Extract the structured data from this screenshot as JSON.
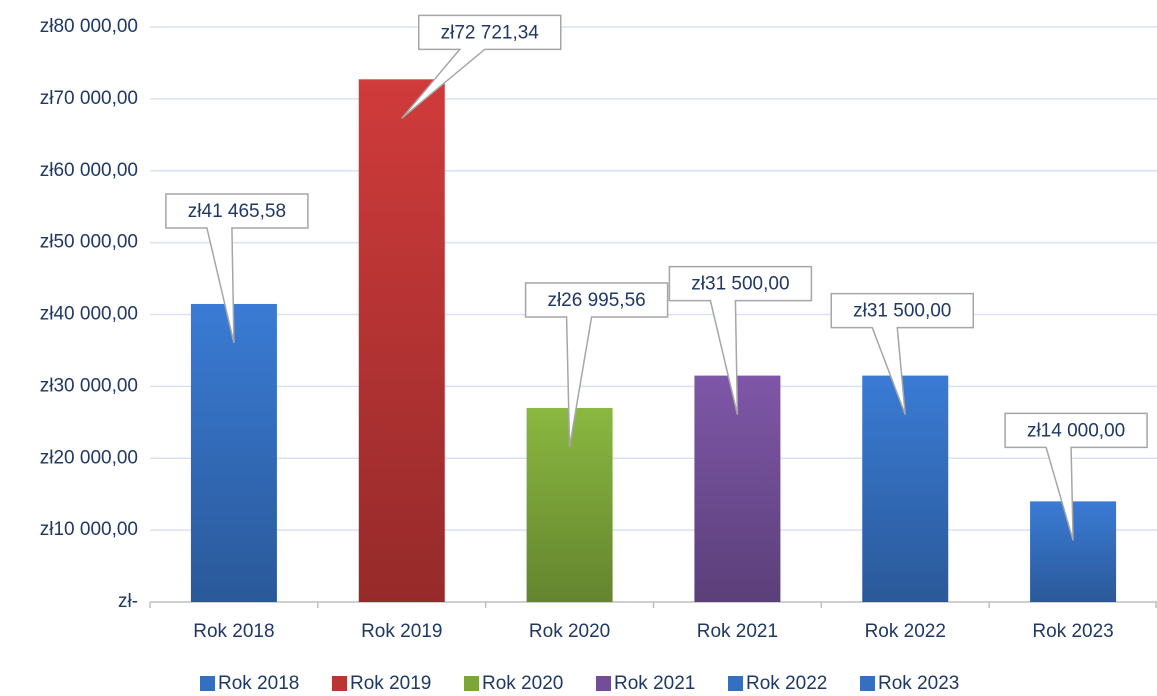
{
  "chart_data": {
    "type": "bar",
    "categories": [
      "Rok 2018",
      "Rok 2019",
      "Rok 2020",
      "Rok 2021",
      "Rok 2022",
      "Rok 2023"
    ],
    "values": [
      41465.58,
      72721.34,
      26995.56,
      31500,
      31500,
      14000
    ],
    "value_labels": [
      "zł41 465,58",
      "zł72 721,34",
      "zł26 995,56",
      "zł31 500,00",
      "zł31 500,00",
      "zł14 000,00"
    ],
    "colors": [
      "#3a7bd5",
      "#d03b3b",
      "#8ab840",
      "#7e57a8",
      "#3a7bd5",
      "#3a7bd5"
    ],
    "ylim": [
      0,
      80000
    ],
    "yticks": [
      {
        "value": 0,
        "label": "zł-"
      },
      {
        "value": 10000,
        "label": "zł10 000,00"
      },
      {
        "value": 20000,
        "label": "zł20 000,00"
      },
      {
        "value": 30000,
        "label": "zł30 000,00"
      },
      {
        "value": 40000,
        "label": "zł40 000,00"
      },
      {
        "value": 50000,
        "label": "zł50 000,00"
      },
      {
        "value": 60000,
        "label": "zł60 000,00"
      },
      {
        "value": 70000,
        "label": "zł70 000,00"
      },
      {
        "value": 80000,
        "label": "zł80 000,00"
      }
    ],
    "grid": true,
    "legend": "bottom"
  }
}
